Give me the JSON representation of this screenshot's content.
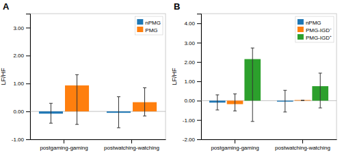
{
  "chart_data": [
    {
      "type": "bar",
      "title": "A",
      "y_label": "LF/HF",
      "categories": [
        "postgaming-gaming",
        "postwatching-watching"
      ],
      "series": [
        {
          "name": "nPMG",
          "values": [
            -0.08,
            -0.05
          ],
          "error_center": [
            -0.04,
            -0.025
          ],
          "error_minus": [
            0.38,
            0.56
          ],
          "error_plus": [
            0.33,
            0.55
          ]
        },
        {
          "name": "PMG",
          "values": [
            0.93,
            0.33
          ],
          "error_center": [
            0.465,
            0.165
          ],
          "error_minus": [
            0.93,
            0.33
          ],
          "error_plus": [
            0.85,
            0.68
          ]
        }
      ],
      "ylim": [
        -1.0,
        3.5
      ],
      "yticks": [
        {
          "value": -1.0,
          "label": "-1.00"
        },
        {
          "value": 0.0,
          "label": "0.00"
        },
        {
          "value": 1.0,
          "label": "1.00"
        },
        {
          "value": 2.0,
          "label": "2.00"
        },
        {
          "value": 3.0,
          "label": "3.00"
        }
      ],
      "legend": "upper right"
    },
    {
      "type": "bar",
      "title": "B",
      "y_label": "LF/HF",
      "categories": [
        "postgaming-gaming",
        "postwatching-watching"
      ],
      "series": [
        {
          "name": "nPMG",
          "values": [
            -0.1,
            -0.05
          ],
          "error_center": [
            -0.05,
            -0.025
          ],
          "error_minus": [
            0.43,
            0.56
          ],
          "error_plus": [
            0.35,
            0.56
          ]
        },
        {
          "name": "PMG-IGD⁻",
          "values": [
            -0.18,
            0.03
          ],
          "error_center": [
            -0.09,
            0.015
          ],
          "error_minus": [
            0.44,
            0.0
          ],
          "error_plus": [
            0.44,
            0.0
          ]
        },
        {
          "name": "PMG-IGD⁺",
          "values": [
            2.15,
            0.75
          ],
          "error_center": [
            1.075,
            0.375
          ],
          "error_minus": [
            2.15,
            0.75
          ],
          "error_plus": [
            1.65,
            1.05
          ]
        }
      ],
      "ylim": [
        -2.0,
        4.5
      ],
      "yticks": [
        {
          "value": -2.0,
          "label": "-2.00"
        },
        {
          "value": -1.0,
          "label": "-1.00"
        },
        {
          "value": 0.0,
          "label": "0.00"
        },
        {
          "value": 1.0,
          "label": "1.00"
        },
        {
          "value": 2.0,
          "label": "2.00"
        },
        {
          "value": 3.0,
          "label": "3.00"
        },
        {
          "value": 4.0,
          "label": "4.00"
        }
      ],
      "legend": "upper right"
    }
  ]
}
